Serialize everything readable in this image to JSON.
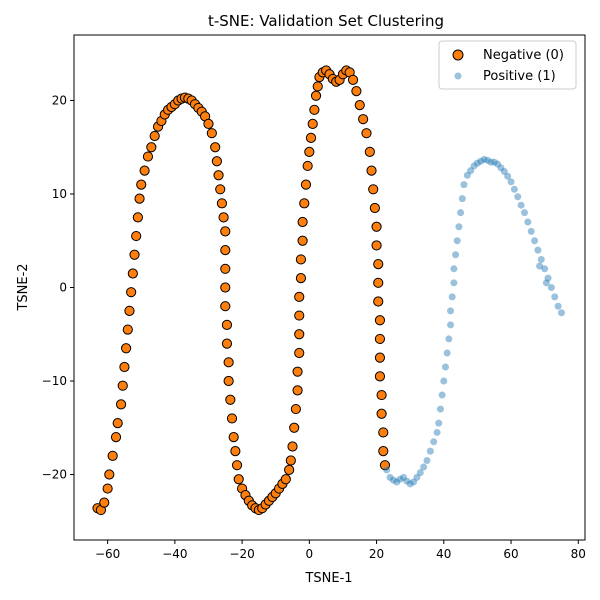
{
  "chart_data": {
    "type": "scatter",
    "title": "t-SNE: Validation Set Clustering",
    "xlabel": "TSNE-1",
    "ylabel": "TSNE-2",
    "xlim": [
      -70,
      82
    ],
    "ylim": [
      -27,
      27
    ],
    "xticks": [
      -60,
      -40,
      -20,
      0,
      20,
      40,
      60,
      80
    ],
    "yticks": [
      -20,
      -10,
      0,
      10,
      20
    ],
    "xtick_labels": [
      "−60",
      "−40",
      "−20",
      "0",
      "20",
      "40",
      "60",
      "80"
    ],
    "ytick_labels": [
      "−20",
      "−10",
      "0",
      "10",
      "20"
    ],
    "grid": false,
    "legend_position": "top-right",
    "series": [
      {
        "name": "Negative (0)",
        "color": "#ff7f0e",
        "edge_color": "#000000",
        "marker": "circle-large",
        "points": [
          [
            -63,
            -23.6
          ],
          [
            -62,
            -23.8
          ],
          [
            -61,
            -23
          ],
          [
            -60,
            -21.5
          ],
          [
            -59.5,
            -20
          ],
          [
            -58.5,
            -18
          ],
          [
            -57.5,
            -16
          ],
          [
            -57,
            -14.5
          ],
          [
            -56,
            -12.5
          ],
          [
            -55.5,
            -10.5
          ],
          [
            -55,
            -8.5
          ],
          [
            -54.5,
            -6.5
          ],
          [
            -54,
            -4.5
          ],
          [
            -53.5,
            -2.5
          ],
          [
            -53,
            -0.5
          ],
          [
            -52.5,
            1.5
          ],
          [
            -52,
            3.5
          ],
          [
            -51.5,
            5.5
          ],
          [
            -51,
            7.5
          ],
          [
            -50.5,
            9.5
          ],
          [
            -50,
            11
          ],
          [
            -49,
            12.5
          ],
          [
            -48,
            14
          ],
          [
            -47,
            15
          ],
          [
            -46,
            16.2
          ],
          [
            -45,
            17.2
          ],
          [
            -44,
            17.8
          ],
          [
            -43,
            18.5
          ],
          [
            -42,
            19
          ],
          [
            -41,
            19.3
          ],
          [
            -40,
            19.6
          ],
          [
            -39,
            20
          ],
          [
            -38,
            20.2
          ],
          [
            -37,
            20.3
          ],
          [
            -36,
            20.2
          ],
          [
            -35,
            20
          ],
          [
            -34,
            19.6
          ],
          [
            -33,
            19.2
          ],
          [
            -32,
            18.8
          ],
          [
            -31,
            18.3
          ],
          [
            -30,
            17.5
          ],
          [
            -29,
            16.5
          ],
          [
            -28,
            15
          ],
          [
            -27.5,
            13.5
          ],
          [
            -27,
            12
          ],
          [
            -26.5,
            10.5
          ],
          [
            -26,
            9
          ],
          [
            -25.5,
            7.5
          ],
          [
            -25,
            6
          ],
          [
            -25,
            4
          ],
          [
            -25,
            2
          ],
          [
            -25,
            0
          ],
          [
            -25,
            -2
          ],
          [
            -24.5,
            -4
          ],
          [
            -24.5,
            -6
          ],
          [
            -24,
            -8
          ],
          [
            -24,
            -10
          ],
          [
            -23.5,
            -12
          ],
          [
            -23,
            -14
          ],
          [
            -22.5,
            -16
          ],
          [
            -22,
            -17.5
          ],
          [
            -21.5,
            -19
          ],
          [
            -21,
            -20.5
          ],
          [
            -20,
            -21.5
          ],
          [
            -19,
            -22.2
          ],
          [
            -18,
            -22.8
          ],
          [
            -17,
            -23.3
          ],
          [
            -16,
            -23.6
          ],
          [
            -15,
            -23.8
          ],
          [
            -14,
            -23.6
          ],
          [
            -13,
            -23.2
          ],
          [
            -12,
            -22.8
          ],
          [
            -11,
            -22.4
          ],
          [
            -10,
            -22
          ],
          [
            -9,
            -21.5
          ],
          [
            -8,
            -21
          ],
          [
            -7,
            -20.5
          ],
          [
            -6,
            -19.5
          ],
          [
            -5.5,
            -18.5
          ],
          [
            -5,
            -17
          ],
          [
            -4.5,
            -15
          ],
          [
            -4,
            -13
          ],
          [
            -3.5,
            -11
          ],
          [
            -3.5,
            -9
          ],
          [
            -3,
            -7
          ],
          [
            -3,
            -5
          ],
          [
            -3,
            -3
          ],
          [
            -3,
            -1
          ],
          [
            -2.5,
            1
          ],
          [
            -2.5,
            3
          ],
          [
            -2,
            5
          ],
          [
            -2,
            7
          ],
          [
            -1.5,
            9
          ],
          [
            -1,
            11
          ],
          [
            -0.5,
            13
          ],
          [
            0,
            14.5
          ],
          [
            0.5,
            16
          ],
          [
            1,
            17.5
          ],
          [
            1.5,
            19
          ],
          [
            2,
            20.5
          ],
          [
            2.5,
            21.5
          ],
          [
            3,
            22.5
          ],
          [
            4,
            23
          ],
          [
            5,
            23.2
          ],
          [
            6,
            22.8
          ],
          [
            7,
            22.3
          ],
          [
            8,
            22
          ],
          [
            9,
            22.2
          ],
          [
            10,
            22.8
          ],
          [
            11,
            23.2
          ],
          [
            12,
            23
          ],
          [
            13,
            22.2
          ],
          [
            14,
            21
          ],
          [
            15,
            19.5
          ],
          [
            16,
            18
          ],
          [
            17,
            16.5
          ],
          [
            18,
            14.5
          ],
          [
            18.5,
            12.5
          ],
          [
            19,
            10.5
          ],
          [
            19.5,
            8.5
          ],
          [
            20,
            6.5
          ],
          [
            20,
            4.5
          ],
          [
            20.5,
            2.5
          ],
          [
            20.5,
            0.5
          ],
          [
            20.5,
            -1.5
          ],
          [
            21,
            -3.5
          ],
          [
            21,
            -5.5
          ],
          [
            21,
            -7.5
          ],
          [
            21,
            -9.5
          ],
          [
            21.5,
            -11.5
          ],
          [
            21.5,
            -13.5
          ],
          [
            22,
            -15.5
          ],
          [
            22,
            -17.5
          ],
          [
            22.5,
            -19
          ]
        ]
      },
      {
        "name": "Positive (1)",
        "color": "#1f77b4",
        "edge_color": "none",
        "marker": "circle-small",
        "points": [
          [
            23,
            -19.5
          ],
          [
            24,
            -20.3
          ],
          [
            25,
            -20.6
          ],
          [
            26,
            -20.8
          ],
          [
            27,
            -20.5
          ],
          [
            28,
            -20.3
          ],
          [
            29,
            -20.7
          ],
          [
            30,
            -21
          ],
          [
            31,
            -20.8
          ],
          [
            32,
            -20.3
          ],
          [
            33,
            -19.8
          ],
          [
            34,
            -19.2
          ],
          [
            35,
            -18.5
          ],
          [
            36,
            -17.5
          ],
          [
            37,
            -16.5
          ],
          [
            38,
            -15.5
          ],
          [
            38.5,
            -14.5
          ],
          [
            39,
            -13
          ],
          [
            39.5,
            -11.5
          ],
          [
            40,
            -10
          ],
          [
            40.5,
            -8.5
          ],
          [
            41,
            -7
          ],
          [
            41.5,
            -5.5
          ],
          [
            42,
            -4
          ],
          [
            42,
            -2.5
          ],
          [
            42.5,
            -1
          ],
          [
            43,
            0.5
          ],
          [
            43,
            2
          ],
          [
            43.5,
            3.5
          ],
          [
            44,
            5
          ],
          [
            44.5,
            6.5
          ],
          [
            45,
            8
          ],
          [
            45.5,
            9.5
          ],
          [
            46,
            11
          ],
          [
            47,
            12
          ],
          [
            48,
            12.5
          ],
          [
            49,
            13
          ],
          [
            50,
            13.3
          ],
          [
            51,
            13.5
          ],
          [
            52,
            13.7
          ],
          [
            53,
            13.6
          ],
          [
            54,
            13.4
          ],
          [
            55,
            13.4
          ],
          [
            56,
            13.2
          ],
          [
            57,
            12.8
          ],
          [
            58,
            12.4
          ],
          [
            59,
            11.9
          ],
          [
            60,
            11.3
          ],
          [
            61,
            10.5
          ],
          [
            62,
            9.7
          ],
          [
            63,
            8.8
          ],
          [
            64,
            8
          ],
          [
            65,
            7
          ],
          [
            66,
            6
          ],
          [
            67,
            5
          ],
          [
            68,
            4
          ],
          [
            69,
            3
          ],
          [
            70,
            2
          ],
          [
            71,
            1
          ],
          [
            72,
            0
          ],
          [
            73,
            -1
          ],
          [
            74,
            -2
          ],
          [
            75,
            -2.7
          ],
          [
            68.5,
            2.3
          ],
          [
            70.5,
            0.5
          ]
        ]
      }
    ]
  }
}
